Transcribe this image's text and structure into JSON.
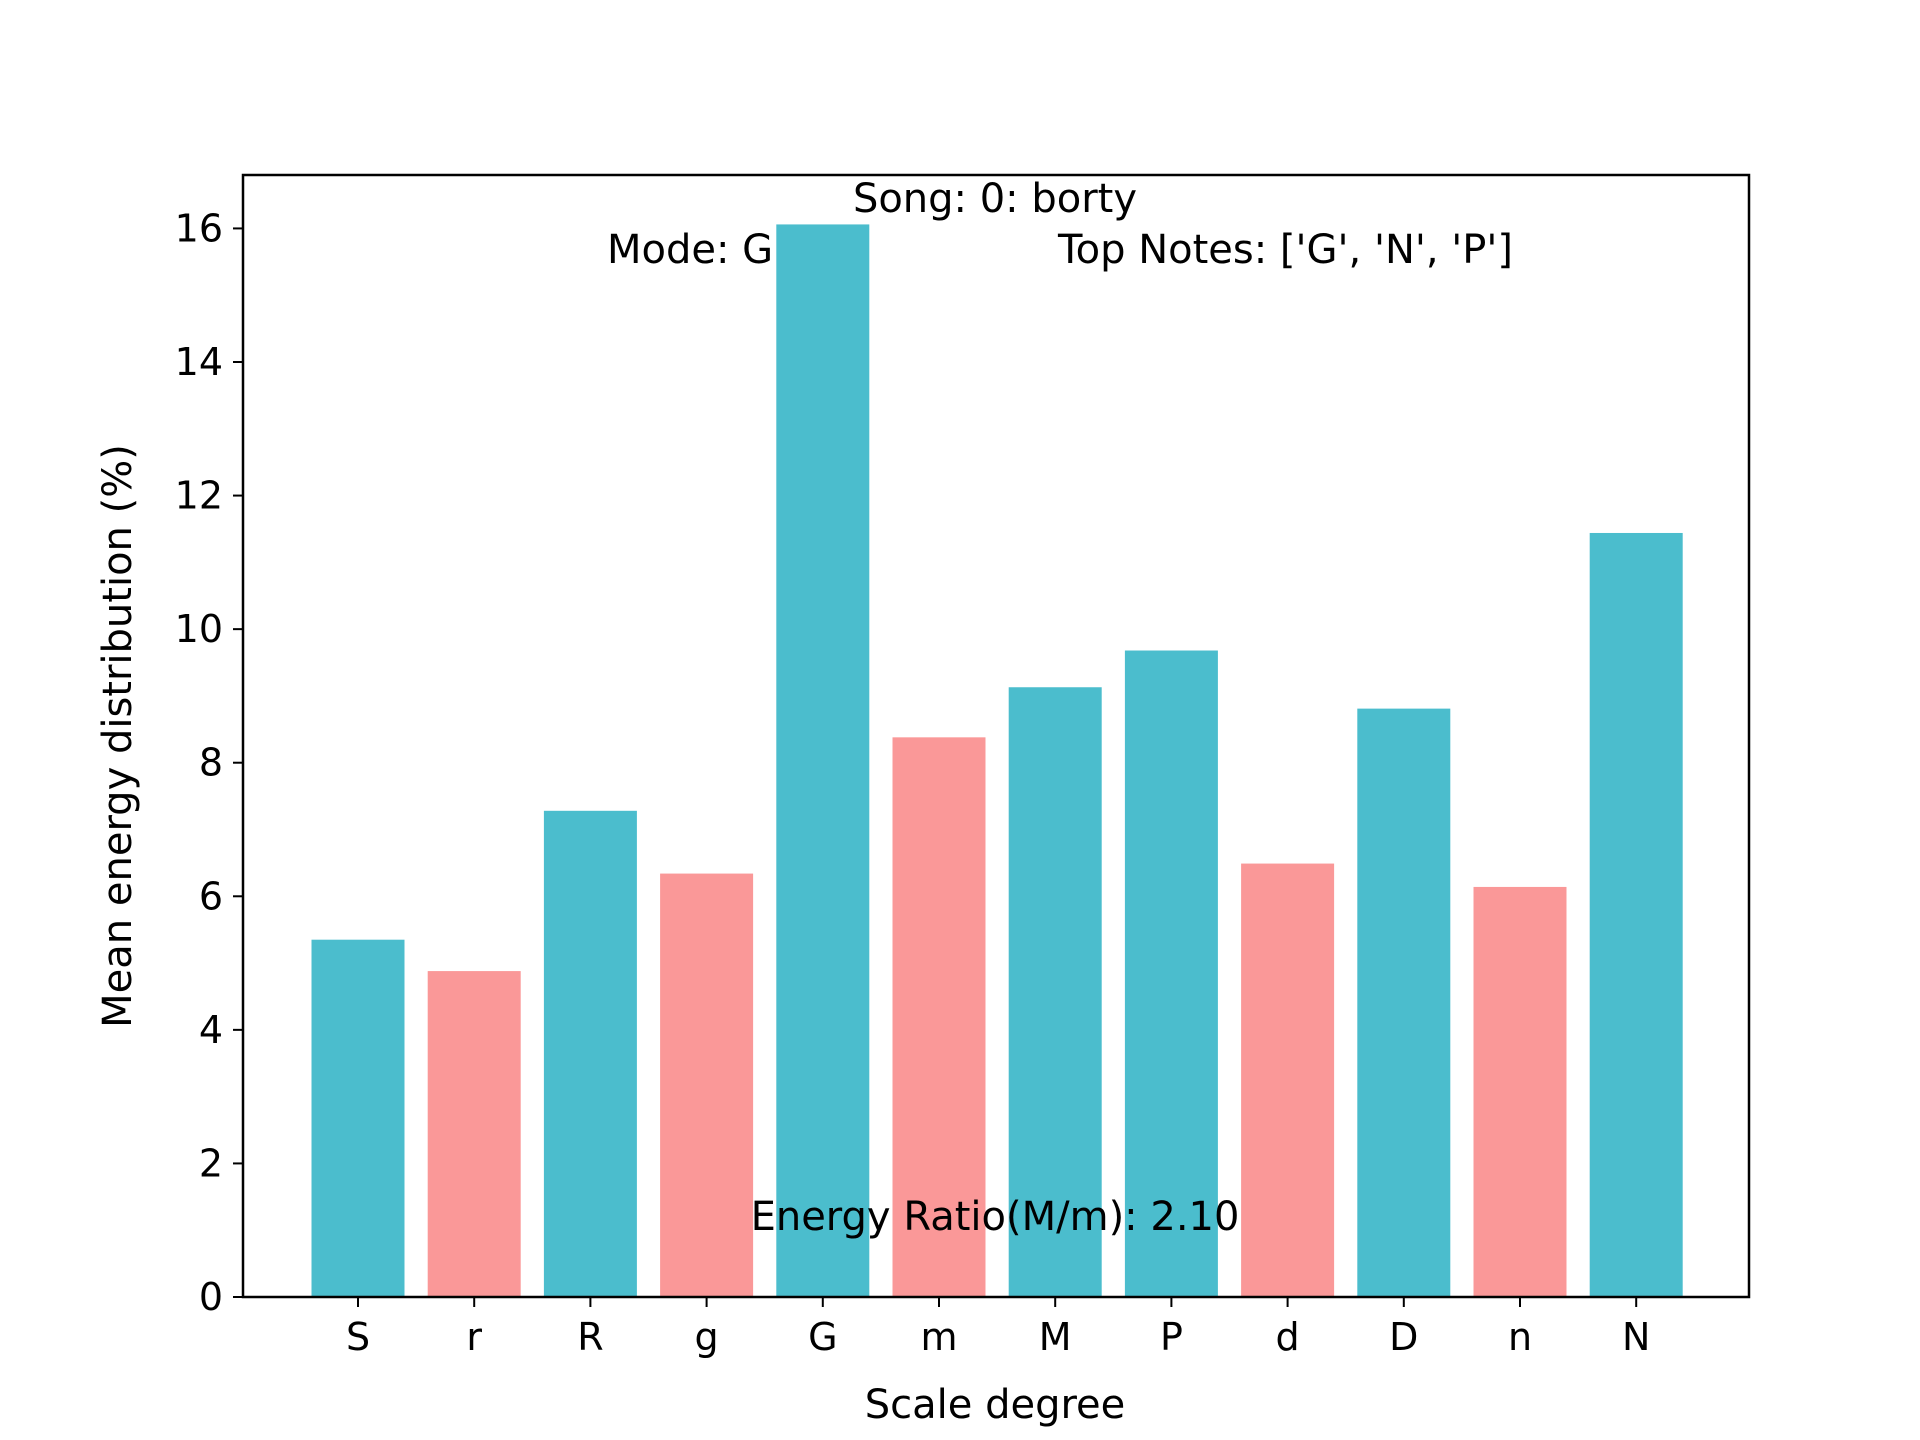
{
  "chart_data": {
    "type": "bar",
    "xlabel": "Scale degree",
    "ylabel": "Mean energy distribution (%)",
    "categories": [
      "S",
      "r",
      "R",
      "g",
      "G",
      "m",
      "M",
      "P",
      "d",
      "D",
      "n",
      "N"
    ],
    "values": [
      5.35,
      4.88,
      7.28,
      6.34,
      16.06,
      8.38,
      9.13,
      9.68,
      6.49,
      8.81,
      6.14,
      11.44
    ],
    "bar_colors": [
      "#4bbdcd",
      "#fa9898",
      "#4bbdcd",
      "#fa9898",
      "#4bbdcd",
      "#fa9898",
      "#4bbdcd",
      "#4bbdcd",
      "#fa9898",
      "#4bbdcd",
      "#fa9898",
      "#4bbdcd"
    ],
    "ylim": [
      0,
      16.8
    ],
    "yticks": [
      0,
      2,
      4,
      6,
      8,
      10,
      12,
      14,
      16
    ],
    "grid": false,
    "annotations": {
      "song": "Song: 0: borty",
      "mode": "Mode: G",
      "top_notes": "Top Notes: ['G', 'N', 'P']",
      "energy_ratio": "Energy Ratio(M/m): 2.10"
    }
  }
}
